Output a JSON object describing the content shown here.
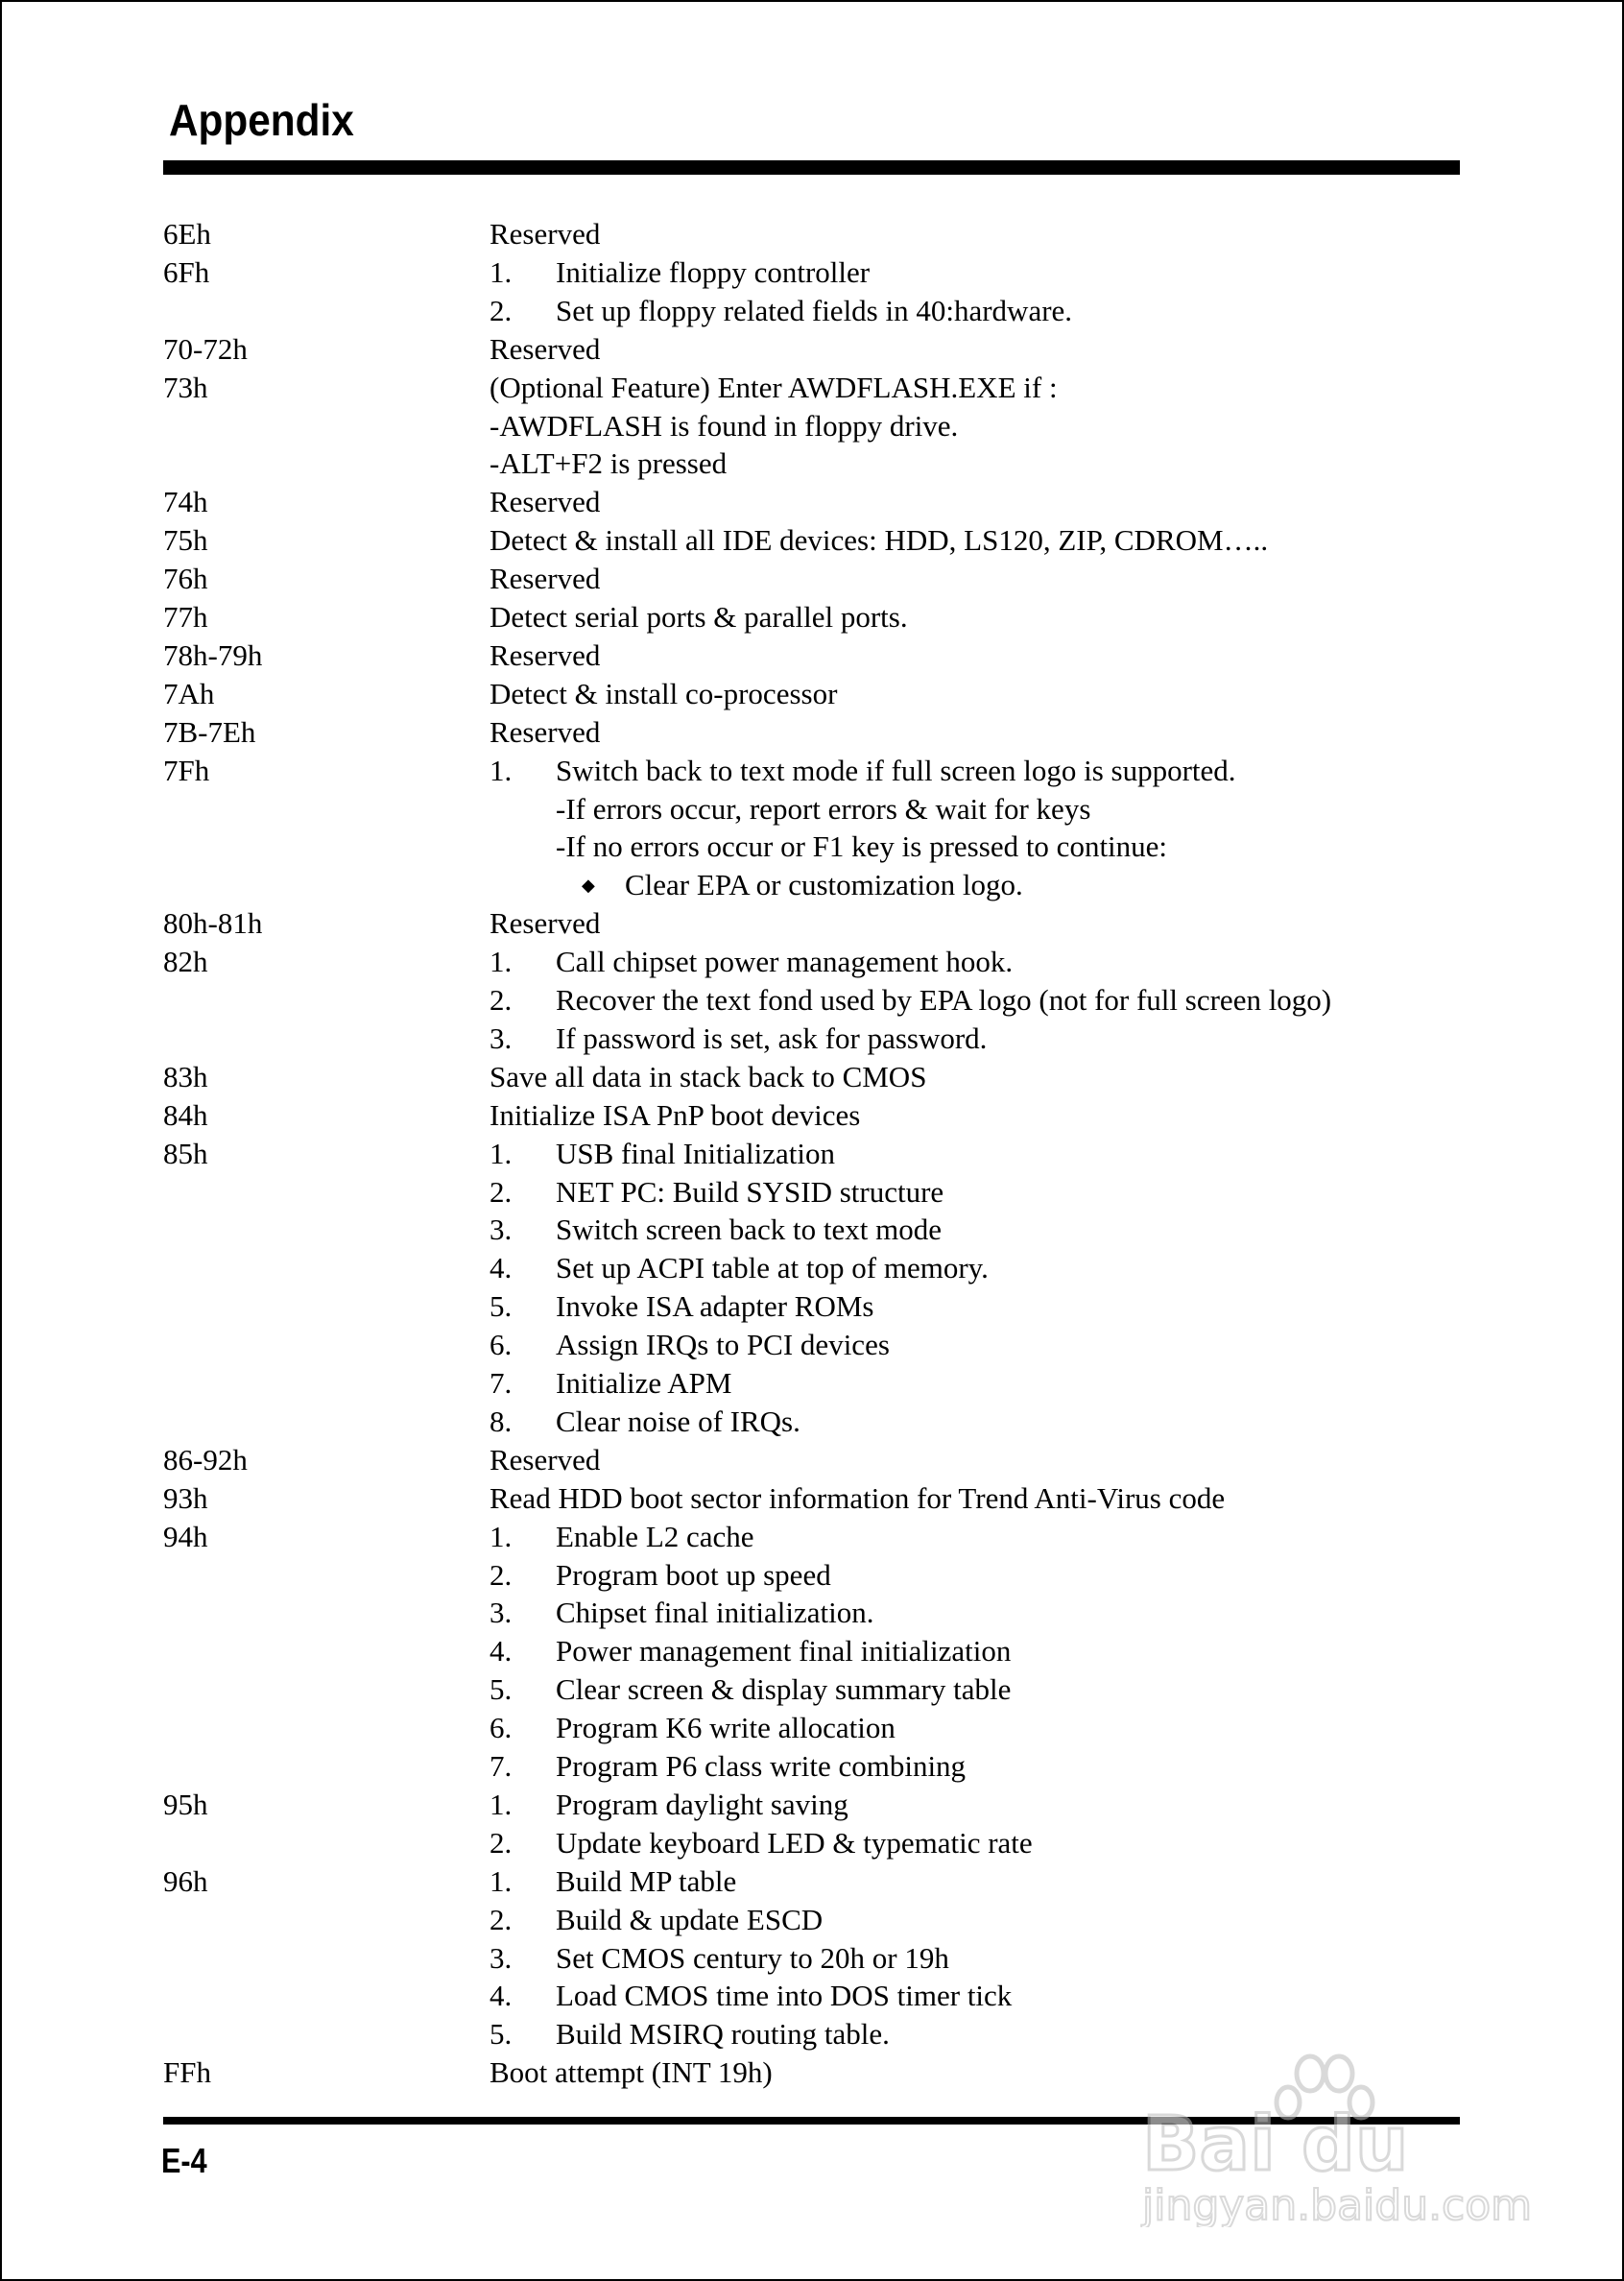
{
  "header": {
    "title": "Appendix"
  },
  "footer": {
    "page": "E-4"
  },
  "watermark": {
    "text": "Bai du 经验",
    "url": "jingyan.baidu.com"
  },
  "rows": [
    {
      "code": "6Eh",
      "marker": "",
      "text": "Reserved",
      "level": 0
    },
    {
      "code": "6Fh",
      "marker": "1.",
      "text": "Initialize floppy controller",
      "level": 1
    },
    {
      "code": "",
      "marker": "2.",
      "text": "Set up floppy related fields in 40:hardware.",
      "level": 1
    },
    {
      "code": "70-72h",
      "marker": "",
      "text": "Reserved",
      "level": 0
    },
    {
      "code": "73h",
      "marker": "",
      "text": "(Optional Feature) Enter AWDFLASH.EXE if :",
      "level": 0
    },
    {
      "code": "",
      "marker": "",
      "text": "-AWDFLASH is found in floppy drive.",
      "level": 0
    },
    {
      "code": "",
      "marker": "",
      "text": "-ALT+F2 is pressed",
      "level": 0
    },
    {
      "code": "74h",
      "marker": "",
      "text": "Reserved",
      "level": 0
    },
    {
      "code": "75h",
      "marker": "",
      "text": "Detect & install all IDE devices: HDD, LS120, ZIP, CDROM…..",
      "level": 0
    },
    {
      "code": "76h",
      "marker": "",
      "text": "Reserved",
      "level": 0
    },
    {
      "code": "77h",
      "marker": "",
      "text": "Detect serial ports & parallel ports.",
      "level": 0
    },
    {
      "code": "78h-79h",
      "marker": "",
      "text": "Reserved",
      "level": 0
    },
    {
      "code": "7Ah",
      "marker": "",
      "text": "Detect & install co-processor",
      "level": 0
    },
    {
      "code": "7B-7Eh",
      "marker": "",
      "text": "Reserved",
      "level": 0
    },
    {
      "code": "7Fh",
      "marker": "1.",
      "text": "Switch back to text mode if full screen logo is supported.",
      "level": 1
    },
    {
      "code": "",
      "marker": "",
      "text": "-If errors occur, report errors & wait for keys",
      "level": 2
    },
    {
      "code": "",
      "marker": "",
      "text": "-If no errors occur or F1 key is pressed to continue:",
      "level": 2
    },
    {
      "code": "",
      "marker": "◆",
      "text": "Clear EPA or customization logo.",
      "level": 3
    },
    {
      "code": "80h-81h",
      "marker": "",
      "text": "Reserved",
      "level": 0
    },
    {
      "code": "82h",
      "marker": "1.",
      "text": "Call chipset power management hook.",
      "level": 1
    },
    {
      "code": "",
      "marker": "2.",
      "text": "Recover the text fond used by EPA logo (not for full screen logo)",
      "level": 1
    },
    {
      "code": "",
      "marker": "3.",
      "text": "If password is set, ask for password.",
      "level": 1
    },
    {
      "code": "83h",
      "marker": "",
      "text": "Save all data in stack back to CMOS",
      "level": 0
    },
    {
      "code": "84h",
      "marker": "",
      "text": "Initialize ISA PnP boot devices",
      "level": 0
    },
    {
      "code": "85h",
      "marker": "1.",
      "text": "USB final Initialization",
      "level": 1
    },
    {
      "code": "",
      "marker": "2.",
      "text": "NET PC: Build SYSID structure",
      "level": 1
    },
    {
      "code": "",
      "marker": "3.",
      "text": "Switch screen back to text mode",
      "level": 1
    },
    {
      "code": "",
      "marker": "4.",
      "text": "Set up ACPI table at top of memory.",
      "level": 1
    },
    {
      "code": "",
      "marker": "5.",
      "text": "Invoke ISA adapter ROMs",
      "level": 1
    },
    {
      "code": "",
      "marker": "6.",
      "text": "Assign IRQs to PCI devices",
      "level": 1
    },
    {
      "code": "",
      "marker": "7.",
      "text": "Initialize APM",
      "level": 1
    },
    {
      "code": "",
      "marker": "8.",
      "text": "Clear noise of IRQs.",
      "level": 1
    },
    {
      "code": "86-92h",
      "marker": "",
      "text": "Reserved",
      "level": 0
    },
    {
      "code": "93h",
      "marker": "",
      "text": "Read HDD boot sector information for Trend Anti-Virus code",
      "level": 0
    },
    {
      "code": "94h",
      "marker": "1.",
      "text": "Enable L2 cache",
      "level": 1
    },
    {
      "code": "",
      "marker": "2.",
      "text": "Program boot up speed",
      "level": 1
    },
    {
      "code": "",
      "marker": "3.",
      "text": "Chipset final initialization.",
      "level": 1
    },
    {
      "code": "",
      "marker": "4.",
      "text": "Power management final initialization",
      "level": 1
    },
    {
      "code": "",
      "marker": "5.",
      "text": "Clear screen & display summary table",
      "level": 1
    },
    {
      "code": "",
      "marker": "6.",
      "text": "Program K6 write allocation",
      "level": 1
    },
    {
      "code": "",
      "marker": "7.",
      "text": "Program P6 class write combining",
      "level": 1
    },
    {
      "code": "95h",
      "marker": "1.",
      "text": "Program daylight saving",
      "level": 1
    },
    {
      "code": "",
      "marker": "2.",
      "text": "Update keyboard LED & typematic rate",
      "level": 1
    },
    {
      "code": "96h",
      "marker": "1.",
      "text": "Build MP table",
      "level": 1
    },
    {
      "code": "",
      "marker": "2.",
      "text": "Build & update ESCD",
      "level": 1
    },
    {
      "code": "",
      "marker": "3.",
      "text": "Set CMOS century to 20h or 19h",
      "level": 1
    },
    {
      "code": "",
      "marker": "4.",
      "text": "Load CMOS time into DOS timer tick",
      "level": 1
    },
    {
      "code": "",
      "marker": "5.",
      "text": "Build MSIRQ routing table.",
      "level": 1
    },
    {
      "code": " FFh",
      "marker": "",
      "text": "Boot attempt (INT 19h)",
      "level": 0
    }
  ]
}
